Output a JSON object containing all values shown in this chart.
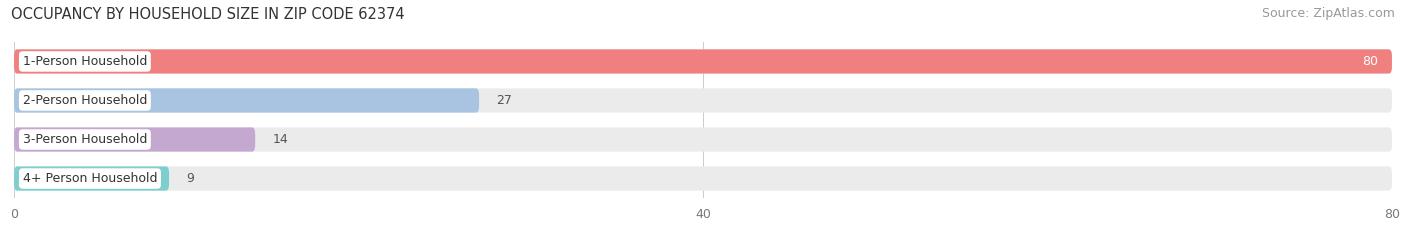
{
  "title": "OCCUPANCY BY HOUSEHOLD SIZE IN ZIP CODE 62374",
  "source": "Source: ZipAtlas.com",
  "categories": [
    "1-Person Household",
    "2-Person Household",
    "3-Person Household",
    "4+ Person Household"
  ],
  "values": [
    80,
    27,
    14,
    9
  ],
  "bar_colors": [
    "#F08080",
    "#A8C4E0",
    "#C4A8D0",
    "#7ECECE"
  ],
  "bar_bg_color": "#EBEBEB",
  "xlim": [
    0,
    80
  ],
  "xticks": [
    0,
    40,
    80
  ],
  "label_bg_color": "#FFFFFF",
  "title_fontsize": 10.5,
  "source_fontsize": 9,
  "tick_fontsize": 9,
  "bar_label_fontsize": 9,
  "category_fontsize": 9,
  "figsize": [
    14.06,
    2.33
  ],
  "dpi": 100,
  "bar_height": 0.62,
  "bar_gap": 0.38
}
